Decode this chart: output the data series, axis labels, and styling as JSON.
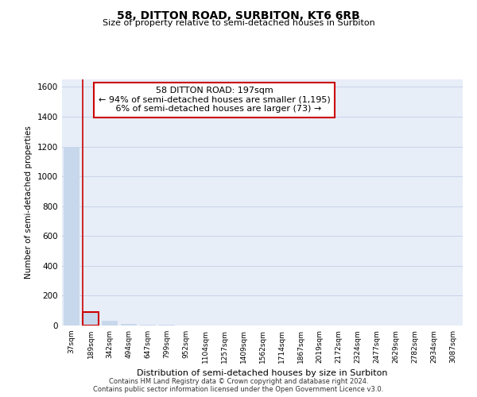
{
  "title": "58, DITTON ROAD, SURBITON, KT6 6RB",
  "subtitle": "Size of property relative to semi-detached houses in Surbiton",
  "xlabel": "Distribution of semi-detached houses by size in Surbiton",
  "ylabel": "Number of semi-detached properties",
  "categories": [
    "37sqm",
    "189sqm",
    "342sqm",
    "494sqm",
    "647sqm",
    "799sqm",
    "952sqm",
    "1104sqm",
    "1257sqm",
    "1409sqm",
    "1562sqm",
    "1714sqm",
    "1867sqm",
    "2019sqm",
    "2172sqm",
    "2324sqm",
    "2477sqm",
    "2629sqm",
    "2782sqm",
    "2934sqm",
    "3087sqm"
  ],
  "values": [
    1195,
    90,
    30,
    10,
    5,
    3,
    2,
    2,
    1,
    1,
    1,
    1,
    1,
    0,
    0,
    0,
    0,
    0,
    0,
    0,
    0
  ],
  "highlight_index": 1,
  "bar_color": "#c8d8ec",
  "highlight_outline_color": "#cc0000",
  "annotation_text": "58 DITTON ROAD: 197sqm\n← 94% of semi-detached houses are smaller (1,195)\n   6% of semi-detached houses are larger (73) →",
  "ylim": [
    0,
    1650
  ],
  "yticks": [
    0,
    200,
    400,
    600,
    800,
    1000,
    1200,
    1400,
    1600
  ],
  "grid_color": "#c8d4e8",
  "background_color": "#e8eef8",
  "footer_line1": "Contains HM Land Registry data © Crown copyright and database right 2024.",
  "footer_line2": "Contains public sector information licensed under the Open Government Licence v3.0."
}
